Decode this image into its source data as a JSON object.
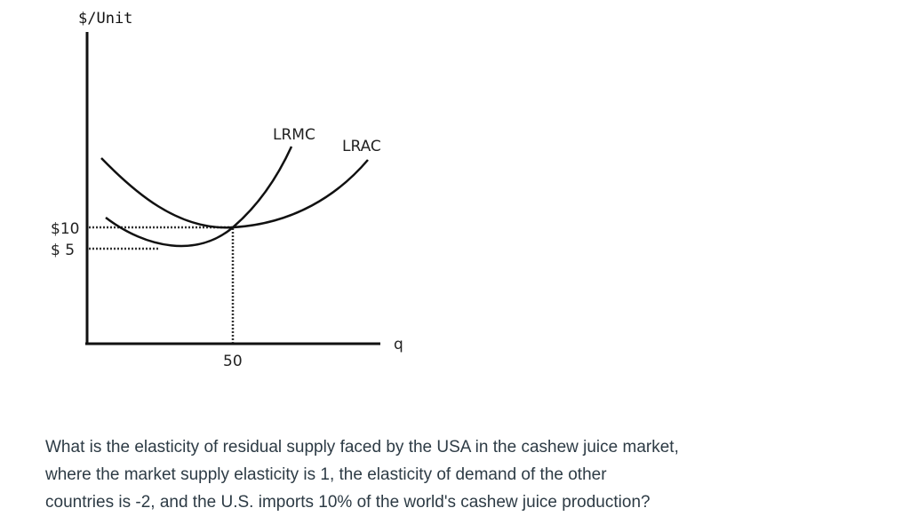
{
  "diagram": {
    "y_axis_label": "$/Unit",
    "x_axis_label": "q",
    "curves": {
      "lrmc": "LRMC",
      "lrac": "LRAC"
    },
    "price_labels": {
      "p10": "$10",
      "p5": "$ 5"
    },
    "quantity_label": "50",
    "colors": {
      "curve": "#111111",
      "axis": "#111111",
      "dotted": "#333333"
    }
  },
  "question": {
    "lines": [
      "What is the elasticity of residual supply faced by the USA in the cashew juice market,",
      "where the market supply elasticity is 1, the elasticity of demand of the other",
      "countries is -2, and the U.S. imports 10% of the world's cashew juice production?"
    ]
  }
}
